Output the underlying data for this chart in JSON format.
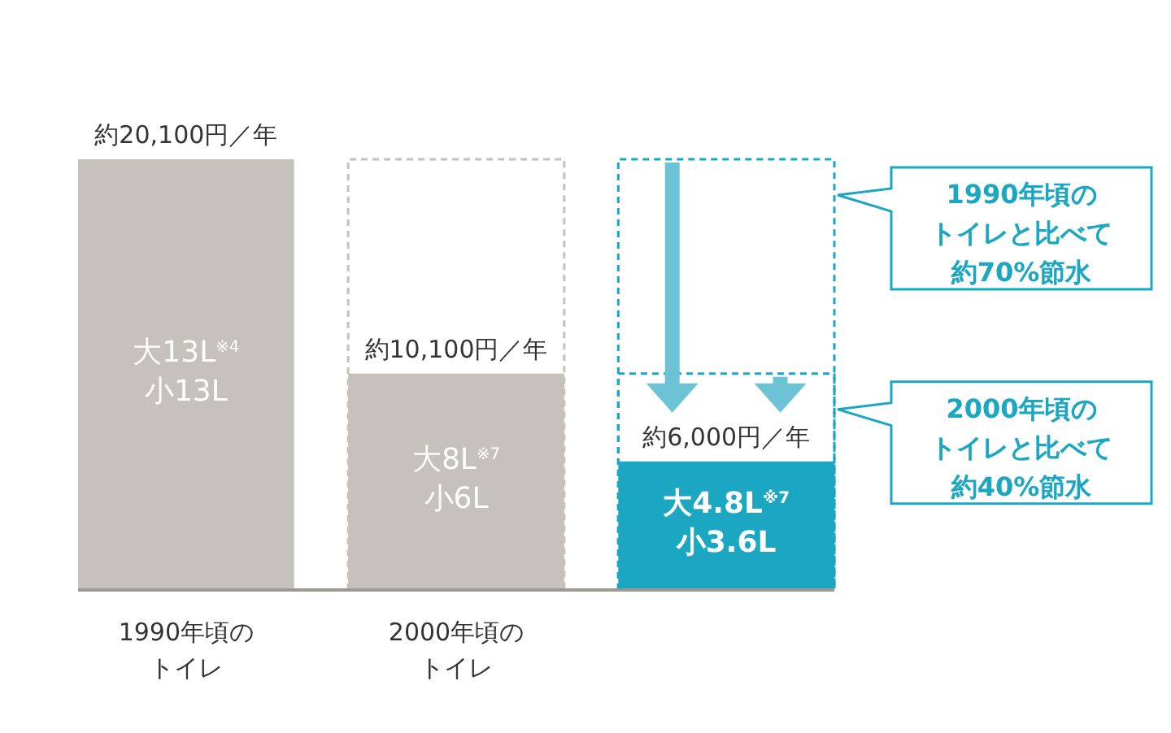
{
  "chart_data": {
    "type": "bar",
    "categories": [
      "1990年頃のトイレ",
      "2000年頃のトイレ",
      null
    ],
    "values": [
      20100,
      10100,
      6000
    ],
    "colors": [
      "#c5c1bc",
      "#c5c1bc",
      "#1ba7c1"
    ],
    "ref_lines": [
      {
        "axis": "y",
        "value": 20100,
        "line_style": "dashed"
      },
      {
        "axis": "y",
        "value": 10100,
        "line_style": "dashed"
      }
    ],
    "value_labels": [
      "約20,100円／年",
      "約10,100円／年",
      "約6,000円／年"
    ],
    "annotations": [
      "大13L$^{※4}$\n小13L",
      "大8L$^{※7}$\n小6L",
      "大4.8L$^{※7}$\n小3.6L",
      "1990年頃のトイレと比べて約70%節水",
      "2000年頃のトイレと比べて約40%節水"
    ]
  }
}
